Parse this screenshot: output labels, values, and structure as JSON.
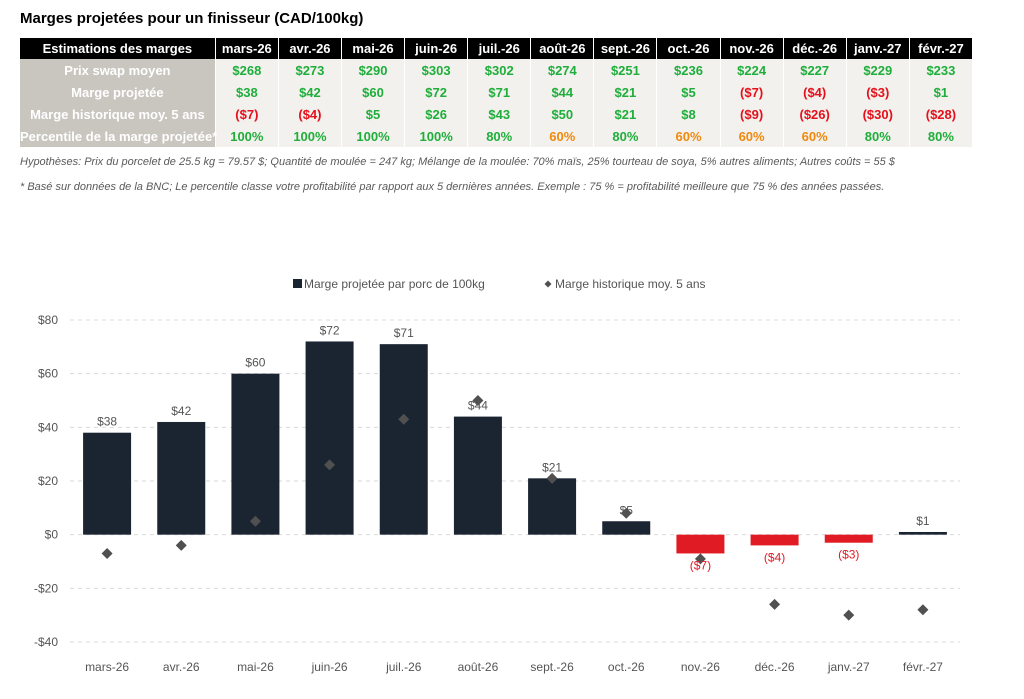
{
  "page_title": "Marges projetées pour un finisseur (CAD/100kg)",
  "table": {
    "corner_header": "Estimations des marges",
    "months": [
      "mars-26",
      "avr.-26",
      "mai-26",
      "juin-26",
      "juil.-26",
      "août-26",
      "sept.-26",
      "oct.-26",
      "nov.-26",
      "déc.-26",
      "janv.-27",
      "févr.-27"
    ],
    "rows": [
      {
        "label": "Prix swap moyen",
        "values": [
          "$268",
          "$273",
          "$290",
          "$303",
          "$302",
          "$274",
          "$251",
          "$236",
          "$224",
          "$227",
          "$229",
          "$233"
        ],
        "colors": [
          "green",
          "green",
          "green",
          "green",
          "green",
          "green",
          "green",
          "green",
          "green",
          "green",
          "green",
          "green"
        ]
      },
      {
        "label": "Marge projetée",
        "values": [
          "$38",
          "$42",
          "$60",
          "$72",
          "$71",
          "$44",
          "$21",
          "$5",
          "($7)",
          "($4)",
          "($3)",
          "$1"
        ],
        "colors": [
          "green",
          "green",
          "green",
          "green",
          "green",
          "green",
          "green",
          "green",
          "red",
          "red",
          "red",
          "green"
        ]
      },
      {
        "label": "Marge historique moy. 5 ans",
        "values": [
          "($7)",
          "($4)",
          "$5",
          "$26",
          "$43",
          "$50",
          "$21",
          "$8",
          "($9)",
          "($26)",
          "($30)",
          "($28)"
        ],
        "colors": [
          "red",
          "red",
          "green",
          "green",
          "green",
          "green",
          "green",
          "green",
          "red",
          "red",
          "red",
          "red"
        ]
      },
      {
        "label": "Percentile de la marge projetée*",
        "values": [
          "100%",
          "100%",
          "100%",
          "100%",
          "80%",
          "60%",
          "80%",
          "60%",
          "60%",
          "60%",
          "80%",
          "80%"
        ],
        "colors": [
          "green",
          "green",
          "green",
          "green",
          "green",
          "orange",
          "green",
          "orange",
          "orange",
          "orange",
          "green",
          "green"
        ]
      }
    ]
  },
  "notes": {
    "assumptions": "Hypothèses: Prix du porcelet de 25.5 kg = 79.57 $; Quantité de moulée = 247 kg; Mélange de la moulée: 70% maïs, 25% tourteau de soya, 5% autres aliments; Autres coûts = 55 $",
    "footnote": "* Basé sur données de la BNC; Le percentile classe votre profitabilité par rapport aux 5 dernières années. Exemple : 75 % = profitabilité meilleure que 75 % des années passées."
  },
  "colors": {
    "bar_positive": "#1b2532",
    "bar_negative": "#e01b24",
    "marker": "#505050",
    "label_positive": "#555555",
    "label_negative": "#e01b24",
    "grid": "#d9d9d9",
    "green": "#1fae3b",
    "red": "#e4101b",
    "orange": "#f0890e"
  },
  "chart_data": {
    "type": "bar",
    "categories": [
      "mars-26",
      "avr.-26",
      "mai-26",
      "juin-26",
      "juil.-26",
      "août-26",
      "sept.-26",
      "oct.-26",
      "nov.-26",
      "déc.-26",
      "janv.-27",
      "févr.-27"
    ],
    "series": [
      {
        "name": "Marge projetée par porc de 100kg",
        "kind": "bar",
        "values": [
          38,
          42,
          60,
          72,
          71,
          44,
          21,
          5,
          -7,
          -4,
          -3,
          1
        ]
      },
      {
        "name": "Marge historique moy. 5 ans",
        "kind": "marker-diamond",
        "values": [
          -7,
          -4,
          5,
          26,
          43,
          50,
          21,
          8,
          -9,
          -26,
          -30,
          -28
        ]
      }
    ],
    "data_labels": [
      "$38",
      "$42",
      "$60",
      "$72",
      "$71",
      "$44",
      "$21",
      "$5",
      "($7)",
      "($4)",
      "($3)",
      "$1"
    ],
    "ylim": [
      -40,
      80
    ],
    "yticks": [
      80,
      60,
      40,
      20,
      0,
      -20,
      -40
    ],
    "ytick_labels": [
      "$80",
      "$60",
      "$40",
      "$20",
      "$0",
      "-$20",
      "-$40"
    ],
    "grid": true,
    "legend_position": "top"
  }
}
